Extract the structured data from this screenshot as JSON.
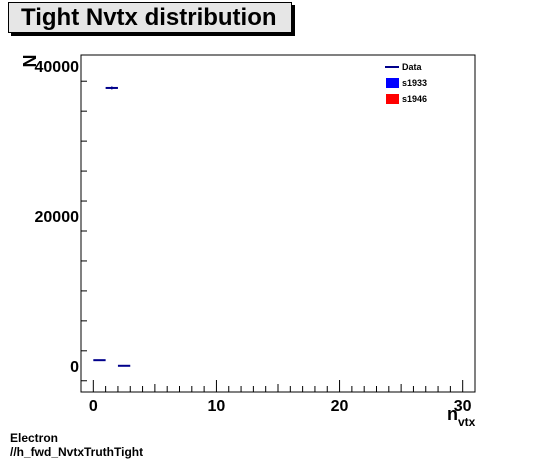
{
  "title": "Tight Nvtx distribution",
  "footer": {
    "line1": "Electron",
    "line2": "//h_fwd_NvtxTruthTight"
  },
  "colors": {
    "data": "#00008b",
    "s1933": "#0000ff",
    "s1946": "#ff0000",
    "title_bg": "#e6e6e6"
  },
  "chart_data": {
    "type": "scatter",
    "title": "Tight Nvtx distribution",
    "xlabel": "n_vtx",
    "ylabel": "N",
    "xlim": [
      -1,
      31
    ],
    "ylim": [
      -3500,
      41500
    ],
    "x_ticks": [
      0,
      10,
      20,
      30
    ],
    "y_ticks": [
      0,
      20000,
      40000
    ],
    "grid": false,
    "legend_position": "top-right",
    "legend": [
      "Data",
      "s1933",
      "s1946"
    ],
    "series": [
      {
        "name": "Data",
        "bins": [
          {
            "x_low": 0,
            "x_high": 1,
            "value": 750,
            "err": 30
          },
          {
            "x_low": 1,
            "x_high": 2,
            "value": 37100,
            "err": 190
          },
          {
            "x_low": 2,
            "x_high": 3,
            "value": 0,
            "err": 0
          }
        ]
      },
      {
        "name": "s1933",
        "bins": []
      },
      {
        "name": "s1946",
        "bins": []
      }
    ]
  }
}
